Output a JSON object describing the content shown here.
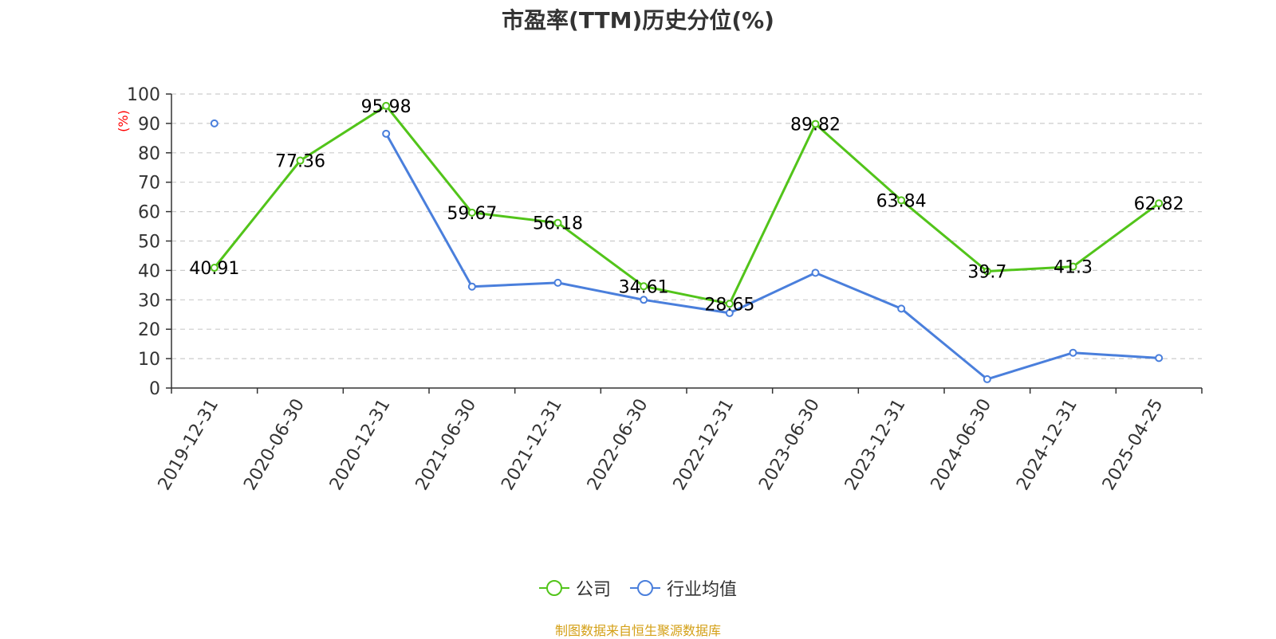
{
  "chart_data": {
    "type": "line",
    "title": "市盈率(TTM)历史分位(%)",
    "ylabel": "(%)",
    "xlabel": "",
    "ylim": [
      0,
      100
    ],
    "yticks": [
      0,
      10,
      20,
      30,
      40,
      50,
      60,
      70,
      80,
      90,
      100
    ],
    "grid": true,
    "legend_position": "bottom",
    "categories": [
      "2019-12-31",
      "2020-06-30",
      "2020-12-31",
      "2021-06-30",
      "2021-12-31",
      "2022-06-30",
      "2022-12-31",
      "2023-06-30",
      "2023-12-31",
      "2024-06-30",
      "2024-12-31",
      "2025-04-25"
    ],
    "series": [
      {
        "name": "公司",
        "color": "#52c41a",
        "values": [
          40.91,
          77.36,
          95.98,
          59.67,
          56.18,
          34.61,
          28.65,
          89.82,
          63.84,
          39.7,
          41.3,
          62.82
        ],
        "labels": [
          "40.91",
          "77.36",
          "95.98",
          "59.67",
          "56.18",
          "34.61",
          "28.65",
          "89.82",
          "63.84",
          "39.7",
          "41.3",
          "62.82"
        ]
      },
      {
        "name": "行业均值",
        "color": "#4a7fdc",
        "values": [
          90,
          null,
          86.5,
          34.5,
          35.8,
          30,
          25.5,
          39.2,
          27,
          3,
          12,
          10.2
        ]
      }
    ]
  },
  "source_note": "制图数据来自恒生聚源数据库"
}
